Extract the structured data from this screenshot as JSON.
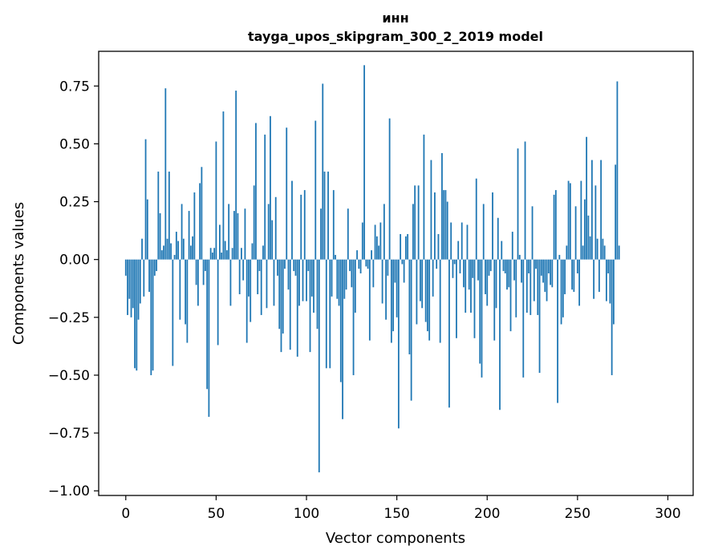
{
  "chart_data": {
    "type": "bar",
    "title": "инн",
    "subtitle": "tayga_upos_skipgram_300_2_2019 model",
    "xlabel": "Vector components",
    "ylabel": "Components values",
    "xlim": [
      -15,
      314
    ],
    "ylim": [
      -1.02,
      0.9
    ],
    "xticks": [
      0,
      50,
      100,
      150,
      200,
      250,
      300
    ],
    "yticks": [
      0.75,
      0.5,
      0.25,
      0.0,
      -0.25,
      -0.5,
      -0.75,
      -1.0
    ],
    "xtick_labels": [
      "0",
      "50",
      "100",
      "150",
      "200",
      "250",
      "300"
    ],
    "ytick_labels": [
      "0.75",
      "0.50",
      "0.25",
      "0.00",
      "−0.25",
      "−0.50",
      "−0.75",
      "−1.00"
    ],
    "bar_color": "#1f77b4",
    "grid": false,
    "values": [
      -0.07,
      -0.24,
      -0.17,
      -0.25,
      -0.21,
      -0.47,
      -0.48,
      -0.26,
      -0.19,
      0.09,
      -0.16,
      0.52,
      0.26,
      -0.14,
      -0.5,
      -0.48,
      -0.07,
      -0.05,
      0.38,
      0.2,
      0.04,
      0.06,
      0.74,
      0.09,
      0.38,
      0.07,
      -0.46,
      0.02,
      0.12,
      0.08,
      -0.26,
      0.24,
      0.09,
      -0.28,
      -0.36,
      0.21,
      0.06,
      0.1,
      0.29,
      -0.11,
      -0.2,
      0.33,
      0.4,
      -0.11,
      -0.05,
      -0.56,
      -0.68,
      0.05,
      0.03,
      0.05,
      0.51,
      -0.37,
      0.15,
      0.03,
      0.64,
      0.08,
      0.04,
      0.24,
      -0.2,
      0.05,
      0.21,
      0.73,
      0.2,
      -0.15,
      0.05,
      -0.09,
      0.22,
      -0.36,
      -0.16,
      -0.27,
      0.07,
      0.32,
      0.59,
      -0.15,
      -0.05,
      -0.24,
      0.06,
      0.54,
      -0.21,
      0.24,
      0.62,
      0.17,
      -0.2,
      0.27,
      -0.07,
      -0.3,
      -0.4,
      -0.32,
      -0.04,
      0.57,
      -0.13,
      -0.39,
      0.34,
      -0.05,
      -0.07,
      -0.42,
      -0.2,
      0.28,
      -0.18,
      0.3,
      -0.18,
      -0.05,
      -0.4,
      -0.16,
      -0.23,
      0.6,
      -0.3,
      -0.92,
      0.22,
      0.76,
      0.38,
      -0.47,
      0.38,
      -0.47,
      -0.16,
      0.3,
      0.02,
      -0.17,
      -0.2,
      -0.53,
      -0.69,
      -0.17,
      -0.13,
      0.22,
      -0.05,
      -0.12,
      -0.5,
      -0.23,
      0.04,
      -0.04,
      -0.06,
      0.16,
      0.84,
      -0.03,
      -0.04,
      -0.35,
      0.04,
      -0.12,
      0.15,
      0.1,
      0.06,
      0.16,
      -0.19,
      0.24,
      -0.26,
      -0.07,
      0.61,
      -0.36,
      -0.31,
      -0.1,
      -0.25,
      -0.73,
      0.11,
      -0.02,
      -0.1,
      0.1,
      0.11,
      -0.41,
      -0.61,
      0.24,
      0.32,
      -0.28,
      0.32,
      -0.18,
      -0.21,
      0.54,
      -0.27,
      -0.31,
      -0.35,
      0.43,
      -0.16,
      0.29,
      -0.04,
      0.11,
      -0.36,
      0.46,
      0.3,
      0.3,
      0.25,
      -0.64,
      0.16,
      -0.08,
      -0.02,
      -0.34,
      0.08,
      -0.06,
      0.16,
      -0.12,
      -0.23,
      0.15,
      -0.13,
      -0.23,
      -0.08,
      -0.34,
      0.35,
      -0.09,
      -0.45,
      -0.51,
      0.24,
      -0.15,
      -0.2,
      -0.07,
      -0.05,
      0.29,
      -0.35,
      -0.21,
      0.18,
      -0.65,
      0.08,
      -0.05,
      -0.06,
      -0.13,
      -0.12,
      -0.31,
      0.12,
      -0.09,
      -0.25,
      0.48,
      0.02,
      -0.1,
      -0.51,
      0.51,
      -0.23,
      -0.06,
      -0.24,
      0.23,
      -0.18,
      -0.04,
      -0.24,
      -0.49,
      -0.07,
      -0.1,
      -0.14,
      -0.18,
      -0.06,
      -0.11,
      -0.12,
      0.28,
      0.3,
      -0.62,
      0.02,
      -0.28,
      -0.25,
      -0.15,
      0.06,
      0.34,
      0.33,
      -0.13,
      -0.14,
      0.23,
      -0.06,
      -0.2,
      0.34,
      0.06,
      0.26,
      0.53,
      0.19,
      0.1,
      0.43,
      -0.17,
      0.32,
      0.09,
      -0.14,
      0.43,
      0.09,
      0.06,
      -0.18,
      -0.06,
      -0.19,
      -0.5,
      -0.28,
      0.41,
      0.77,
      0.06
    ]
  }
}
